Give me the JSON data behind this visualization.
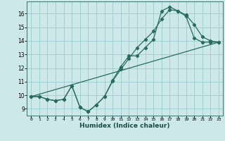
{
  "xlabel": "Humidex (Indice chaleur)",
  "bg_color": "#cce8e8",
  "grid_color": "#99cccc",
  "line_color": "#2a6b60",
  "xlim": [
    -0.5,
    23.5
  ],
  "ylim": [
    8.5,
    16.9
  ],
  "xticks": [
    0,
    1,
    2,
    3,
    4,
    5,
    6,
    7,
    8,
    9,
    10,
    11,
    12,
    13,
    14,
    15,
    16,
    17,
    18,
    19,
    20,
    21,
    22,
    23
  ],
  "yticks": [
    9,
    10,
    11,
    12,
    13,
    14,
    15,
    16
  ],
  "line1_x": [
    0,
    1,
    2,
    3,
    4,
    5,
    6,
    7,
    8,
    9,
    10,
    11,
    12,
    13,
    14,
    15,
    16,
    17,
    18,
    19,
    20,
    21,
    22,
    23
  ],
  "line1_y": [
    9.9,
    9.9,
    9.7,
    9.6,
    9.7,
    10.7,
    9.1,
    8.8,
    9.3,
    9.9,
    11.1,
    12.1,
    12.9,
    12.9,
    13.5,
    14.1,
    16.2,
    16.5,
    16.2,
    15.9,
    15.2,
    14.3,
    14.0,
    13.9
  ],
  "line2_x": [
    0,
    1,
    2,
    3,
    4,
    5,
    6,
    7,
    8,
    9,
    10,
    11,
    12,
    13,
    14,
    15,
    16,
    17,
    18,
    19,
    20,
    21,
    22,
    23
  ],
  "line2_y": [
    9.9,
    9.9,
    9.7,
    9.6,
    9.7,
    10.7,
    9.1,
    8.8,
    9.3,
    9.9,
    11.05,
    11.9,
    12.7,
    13.5,
    14.1,
    14.7,
    15.6,
    16.3,
    16.2,
    15.8,
    14.2,
    13.9,
    13.9,
    13.9
  ],
  "line3_x": [
    0,
    23
  ],
  "line3_y": [
    9.9,
    13.9
  ]
}
